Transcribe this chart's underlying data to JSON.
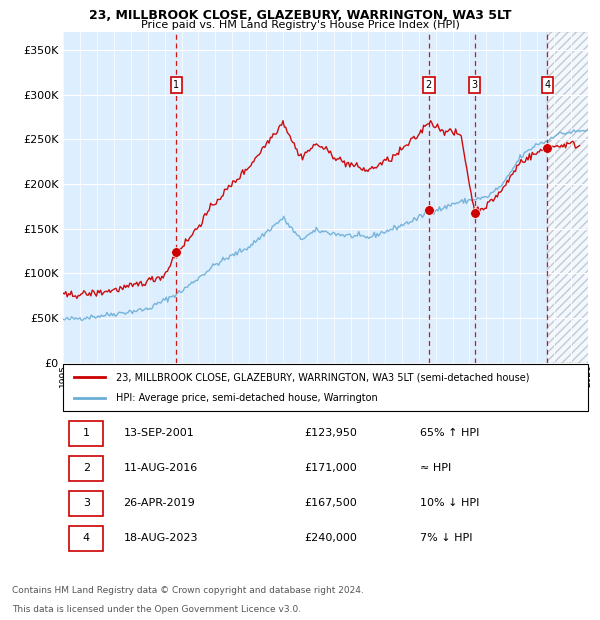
{
  "title": "23, MILLBROOK CLOSE, GLAZEBURY, WARRINGTON, WA3 5LT",
  "subtitle": "Price paid vs. HM Land Registry's House Price Index (HPI)",
  "legend_line1": "23, MILLBROOK CLOSE, GLAZEBURY, WARRINGTON, WA3 5LT (semi-detached house)",
  "legend_line2": "HPI: Average price, semi-detached house, Warrington",
  "footer1": "Contains HM Land Registry data © Crown copyright and database right 2024.",
  "footer2": "This data is licensed under the Open Government Licence v3.0.",
  "sales": [
    {
      "num": 1,
      "date": "13-SEP-2001",
      "price": 123950,
      "year": 2001.7,
      "rel": "65% ↑ HPI"
    },
    {
      "num": 2,
      "date": "11-AUG-2016",
      "price": 171000,
      "year": 2016.6,
      "rel": "≈ HPI"
    },
    {
      "num": 3,
      "date": "26-APR-2019",
      "price": 167500,
      "year": 2019.3,
      "rel": "10% ↓ HPI"
    },
    {
      "num": 4,
      "date": "18-AUG-2023",
      "price": 240000,
      "year": 2023.6,
      "rel": "7% ↓ HPI"
    }
  ],
  "hpi_color": "#6baed6",
  "price_color": "#cc0000",
  "sale_dot_color": "#cc0000",
  "dashed_line_color": "#cc0000",
  "background_main": "#ddeeff",
  "grid_color": "#ffffff",
  "xmin": 1995.0,
  "xmax": 2026.0,
  "ymin": 0,
  "ymax": 370000,
  "yticks": [
    0,
    50000,
    100000,
    150000,
    200000,
    250000,
    300000,
    350000
  ]
}
